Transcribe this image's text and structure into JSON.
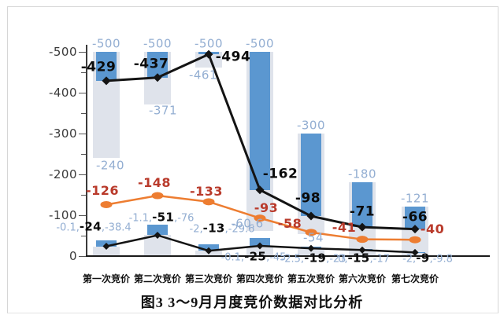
{
  "chart_data": {
    "type": "bar",
    "subtype": "combo: floating columns + 3 marker lines, value axis reversed (0 at bottom, -500 at top)",
    "title": "图3 3～9月月度竞价数据对比分析",
    "categories": [
      "第一次竞价",
      "第二次竞价",
      "第三次竞价",
      "第四次竞价",
      "第五次竞价",
      "第六次竞价",
      "第七次竞价"
    ],
    "y_axis": {
      "ticks": [
        "-500",
        "-400",
        "-300",
        "-200",
        "-100",
        "0"
      ],
      "tick_values": [
        -500,
        -400,
        -300,
        -200,
        -100,
        0
      ],
      "minor_tick_interval": 50,
      "range": [
        0,
        -500
      ],
      "reversed": true,
      "grid": false
    },
    "bars": {
      "column_top_values": [
        -500,
        -500,
        -500,
        -500,
        -300,
        -180,
        -121
      ],
      "column_top_labels": [
        "-500",
        "-500",
        "-500",
        "-500",
        "-300",
        "-180",
        "-121"
      ],
      "wide_gray_end_values": [
        -240,
        -371,
        -461,
        -60.6,
        -54,
        -17,
        -9.8
      ],
      "wide_gray_end_labels": [
        "-240",
        "-371",
        "-461",
        "-60.6",
        "-54",
        "",
        ""
      ],
      "blue_end_values": [
        -429,
        -437,
        -494,
        -162,
        -98,
        -71,
        -66
      ],
      "small_gray_end_values": [
        -24,
        -51,
        -13,
        -25,
        -19,
        -15,
        -9
      ],
      "small_blue_spans": [
        [
          -24,
          -38.4
        ],
        [
          -51,
          -76
        ],
        [
          -13,
          -29.6
        ],
        [
          -25,
          -45
        ],
        [
          -19,
          -23
        ],
        [
          -15,
          -17
        ],
        [
          -9,
          -9.8
        ]
      ]
    },
    "series": [
      {
        "name": "black-line-upper",
        "type": "line",
        "values": [
          -429,
          -437,
          -494,
          -162,
          -98,
          -71,
          -66
        ],
        "labels": [
          "-429",
          "-437",
          "-494",
          "-162",
          "-98",
          "-71",
          "-66"
        ]
      },
      {
        "name": "orange-line",
        "type": "line",
        "values": [
          -126,
          -148,
          -133,
          -93,
          -58,
          -41,
          -40
        ],
        "labels": [
          "-126",
          "-148",
          "-133",
          "-93",
          "-58",
          "-41",
          "-40"
        ]
      },
      {
        "name": "black-line-lower",
        "type": "line",
        "values": [
          -24,
          -51,
          -13,
          -25,
          -19,
          -15,
          -9
        ],
        "labels": []
      }
    ],
    "bottom_point_labels": [
      [
        "-0.1",
        "-24",
        "-38.4"
      ],
      [
        "-1.1",
        "-51",
        "-76"
      ],
      [
        "-2",
        "-13",
        "-29.6"
      ],
      [
        "-0.1",
        "-25",
        "-45"
      ],
      [
        "-2.5",
        "-19",
        "-23"
      ],
      [
        "0",
        "-15",
        "-17"
      ],
      [
        "-2",
        "-9",
        "-9.8"
      ]
    ]
  },
  "colors": {
    "bar_blue": "#5b97d0",
    "bar_gray": "#dfe3eb",
    "line_black": "#141414",
    "line_orange": "#ed7d31",
    "label_light_blue": "#93aed2",
    "label_black": "#0b0b0b",
    "label_red": "#b93a2b",
    "axis": "#3a3a3a"
  }
}
